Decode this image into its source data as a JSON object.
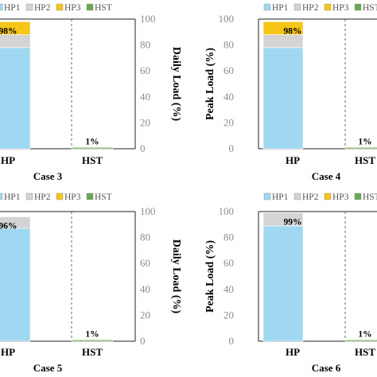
{
  "chart_data": [
    {
      "type": "bar",
      "stacked": true,
      "case_label": "Case 3",
      "ylabel": "Daily Load (%)",
      "ylim": [
        0,
        100
      ],
      "yticks": [
        "0",
        "20",
        "40",
        "60",
        "80",
        "100"
      ],
      "categories": [
        "HP",
        "HST"
      ],
      "legend": [
        "HP1",
        "HP2",
        "HP3",
        "HST"
      ],
      "series": [
        {
          "name": "HP1",
          "color": "#9fd8f0",
          "values": [
            78,
            0
          ]
        },
        {
          "name": "HP2",
          "color": "#d4d4d4",
          "values": [
            10,
            0
          ]
        },
        {
          "name": "HP3",
          "color": "#f5c518",
          "values": [
            10,
            0
          ]
        },
        {
          "name": "HST",
          "color": "#6aa84f",
          "values": [
            0,
            1
          ]
        }
      ],
      "data_labels": [
        "98%",
        "1%"
      ]
    },
    {
      "type": "bar",
      "stacked": true,
      "case_label": "Case 4",
      "ylabel": "Peak Load (%)",
      "ylim": [
        0,
        100
      ],
      "yticks": [
        "0",
        "20",
        "40",
        "60",
        "80",
        "100"
      ],
      "categories": [
        "HP",
        "HST"
      ],
      "legend": [
        "HP1",
        "HP2",
        "HP3",
        "HST"
      ],
      "series": [
        {
          "name": "HP1",
          "color": "#9fd8f0",
          "values": [
            78,
            0
          ]
        },
        {
          "name": "HP2",
          "color": "#d4d4d4",
          "values": [
            10,
            0
          ]
        },
        {
          "name": "HP3",
          "color": "#f5c518",
          "values": [
            10,
            0
          ]
        },
        {
          "name": "HST",
          "color": "#6aa84f",
          "values": [
            0,
            1
          ]
        }
      ],
      "data_labels": [
        "98%",
        "1%"
      ]
    },
    {
      "type": "bar",
      "stacked": true,
      "case_label": "Case 5",
      "ylabel": "Daily Load (%)",
      "ylim": [
        0,
        100
      ],
      "yticks": [
        "0",
        "20",
        "40",
        "60",
        "80",
        "100"
      ],
      "categories": [
        "HP",
        "HST"
      ],
      "legend": [
        "HP1",
        "HP2",
        "HP3",
        "HST"
      ],
      "series": [
        {
          "name": "HP1",
          "color": "#9fd8f0",
          "values": [
            87,
            0
          ]
        },
        {
          "name": "HP2",
          "color": "#d4d4d4",
          "values": [
            9,
            0
          ]
        },
        {
          "name": "HP3",
          "color": "#f5c518",
          "values": [
            0,
            0
          ]
        },
        {
          "name": "HST",
          "color": "#6aa84f",
          "values": [
            0,
            1
          ]
        }
      ],
      "data_labels": [
        "96%",
        "1%"
      ]
    },
    {
      "type": "bar",
      "stacked": true,
      "case_label": "Case 6",
      "ylabel": "Peak Load (%)",
      "ylim": [
        0,
        100
      ],
      "yticks": [
        "0",
        "20",
        "40",
        "60",
        "80",
        "100"
      ],
      "categories": [
        "HP",
        "HST"
      ],
      "legend": [
        "HP1",
        "HP2",
        "HP3",
        "HST"
      ],
      "series": [
        {
          "name": "HP1",
          "color": "#9fd8f0",
          "values": [
            89,
            0
          ]
        },
        {
          "name": "HP2",
          "color": "#d4d4d4",
          "values": [
            10,
            0
          ]
        },
        {
          "name": "HP3",
          "color": "#f5c518",
          "values": [
            0,
            0
          ]
        },
        {
          "name": "HST",
          "color": "#6aa84f",
          "values": [
            0,
            1
          ]
        }
      ],
      "data_labels": [
        "99%",
        "1%"
      ]
    }
  ]
}
